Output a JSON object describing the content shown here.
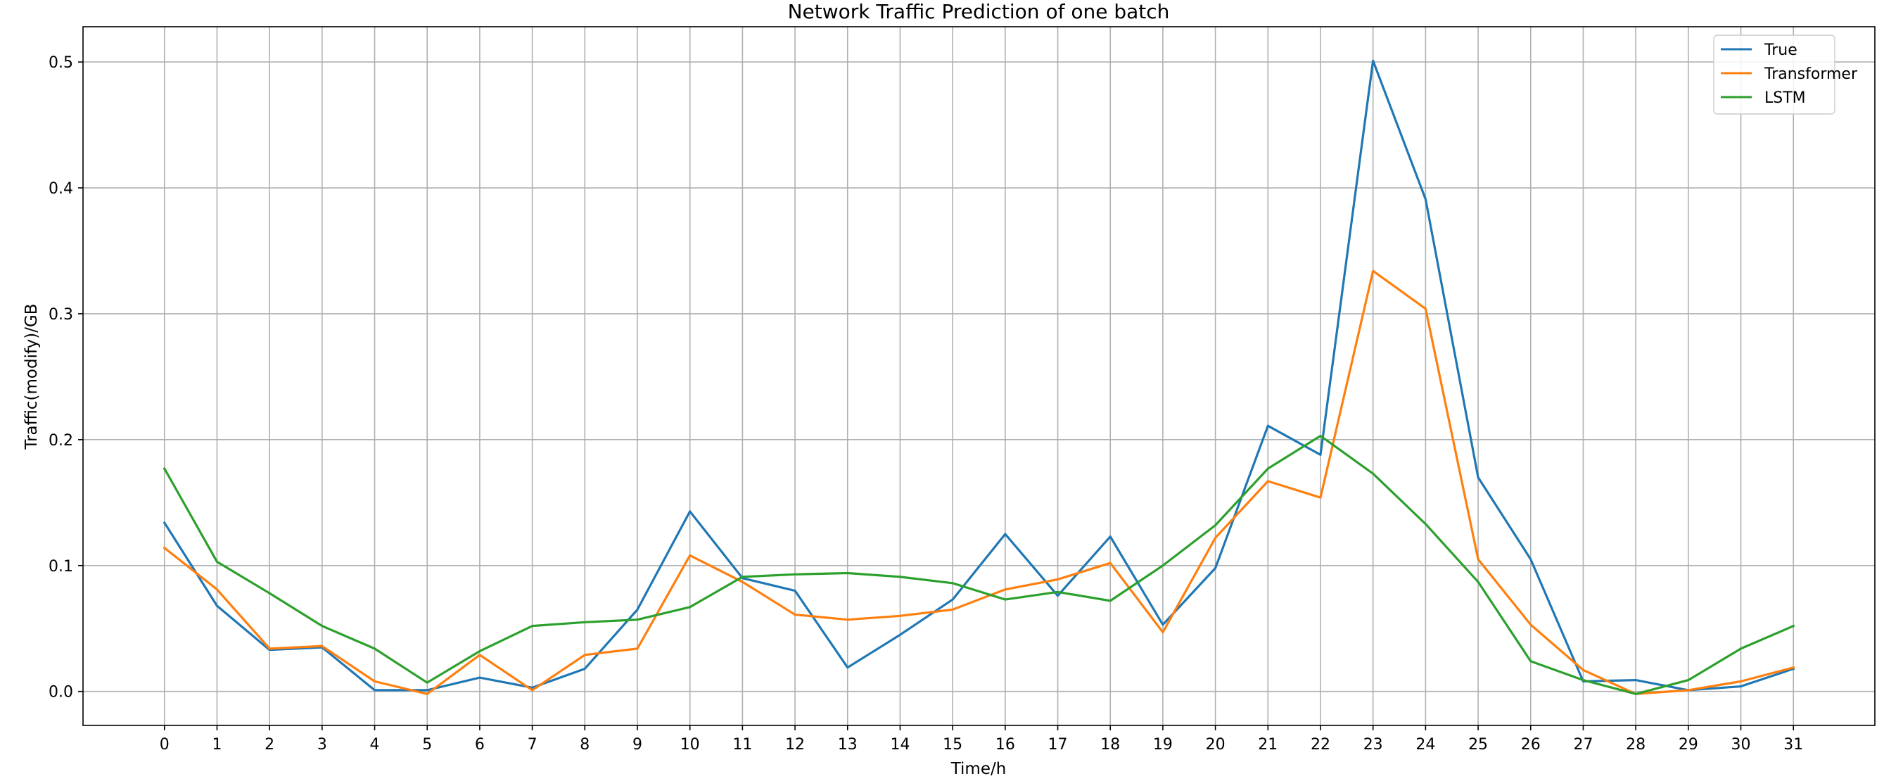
{
  "chart_data": {
    "type": "line",
    "title": "Network Traffic Prediction of one batch",
    "xlabel": "Time/h",
    "ylabel": "Traffic(modify)/GB",
    "x": [
      0,
      1,
      2,
      3,
      4,
      5,
      6,
      7,
      8,
      9,
      10,
      11,
      12,
      13,
      14,
      15,
      16,
      17,
      18,
      19,
      20,
      21,
      22,
      23,
      24,
      25,
      26,
      27,
      28,
      29,
      30,
      31
    ],
    "x_ticks": [
      "0",
      "1",
      "2",
      "3",
      "4",
      "5",
      "6",
      "7",
      "8",
      "9",
      "10",
      "11",
      "12",
      "13",
      "14",
      "15",
      "16",
      "17",
      "18",
      "19",
      "20",
      "21",
      "22",
      "23",
      "24",
      "25",
      "26",
      "27",
      "28",
      "29",
      "30",
      "31"
    ],
    "y_ticks": [
      "0.0",
      "0.1",
      "0.2",
      "0.3",
      "0.4",
      "0.5"
    ],
    "xlim": [
      -1.55,
      32.55
    ],
    "ylim": [
      -0.027,
      0.528
    ],
    "grid": true,
    "legend_position": "top-right",
    "series": [
      {
        "name": "True",
        "color": "#1f77b4",
        "values": [
          0.134,
          0.068,
          0.033,
          0.035,
          0.001,
          0.001,
          0.011,
          0.003,
          0.018,
          0.065,
          0.143,
          0.09,
          0.08,
          0.019,
          0.045,
          0.073,
          0.125,
          0.076,
          0.123,
          0.053,
          0.098,
          0.211,
          0.188,
          0.501,
          0.391,
          0.17,
          0.105,
          0.008,
          0.009,
          0.001,
          0.004,
          0.018
        ]
      },
      {
        "name": "Transformer",
        "color": "#ff7f0e",
        "values": [
          0.114,
          0.081,
          0.034,
          0.036,
          0.008,
          -0.002,
          0.029,
          0.001,
          0.029,
          0.034,
          0.108,
          0.087,
          0.061,
          0.057,
          0.06,
          0.065,
          0.081,
          0.089,
          0.102,
          0.047,
          0.122,
          0.167,
          0.154,
          0.334,
          0.304,
          0.105,
          0.053,
          0.017,
          -0.002,
          0.001,
          0.008,
          0.019
        ]
      },
      {
        "name": "LSTM",
        "color": "#2ca02c",
        "values": [
          0.177,
          0.103,
          0.078,
          0.052,
          0.034,
          0.007,
          0.032,
          0.052,
          0.055,
          0.057,
          0.067,
          0.091,
          0.093,
          0.094,
          0.091,
          0.086,
          0.073,
          0.079,
          0.072,
          0.1,
          0.132,
          0.177,
          0.203,
          0.173,
          0.133,
          0.087,
          0.024,
          0.009,
          -0.002,
          0.009,
          0.034,
          0.052
        ]
      }
    ]
  },
  "style": {
    "grid_color": "#b0b0b0",
    "axis_color": "#000000",
    "legend_border": "#cccccc"
  }
}
